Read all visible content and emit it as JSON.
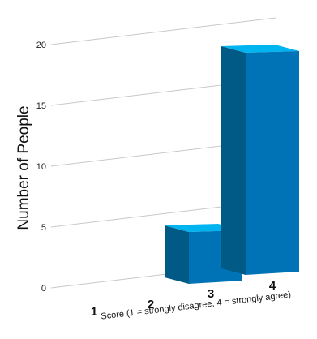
{
  "chart_data": {
    "type": "bar",
    "title": "",
    "xlabel": "Score (1 = strongly disagree, 4 = strongly agree)",
    "ylabel": "Number of People",
    "categories": [
      "1",
      "2",
      "3",
      "4"
    ],
    "values": [
      0,
      0,
      4,
      18
    ],
    "yticks": [
      "0",
      "5",
      "10",
      "15",
      "20"
    ],
    "ylim": [
      0,
      20
    ],
    "grid": true,
    "style": "3d",
    "colors": {
      "front": "#0073b7",
      "top": "#00b4ef",
      "side": "#005a85",
      "grid": "#c8c8c8"
    }
  }
}
